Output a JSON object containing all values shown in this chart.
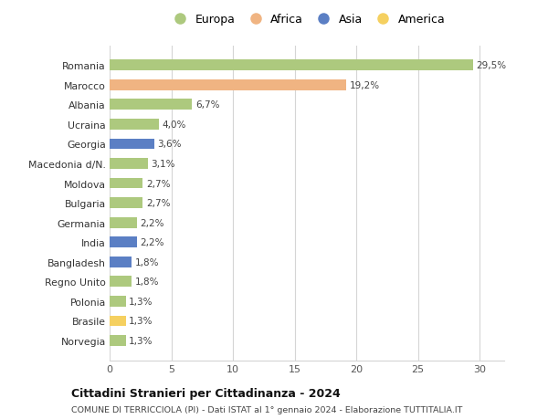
{
  "countries": [
    "Romania",
    "Marocco",
    "Albania",
    "Ucraina",
    "Georgia",
    "Macedonia d/N.",
    "Moldova",
    "Bulgaria",
    "Germania",
    "India",
    "Bangladesh",
    "Regno Unito",
    "Polonia",
    "Brasile",
    "Norvegia"
  ],
  "values": [
    29.5,
    19.2,
    6.7,
    4.0,
    3.6,
    3.1,
    2.7,
    2.7,
    2.2,
    2.2,
    1.8,
    1.8,
    1.3,
    1.3,
    1.3
  ],
  "labels": [
    "29,5%",
    "19,2%",
    "6,7%",
    "4,0%",
    "3,6%",
    "3,1%",
    "2,7%",
    "2,7%",
    "2,2%",
    "2,2%",
    "1,8%",
    "1,8%",
    "1,3%",
    "1,3%",
    "1,3%"
  ],
  "continents": [
    "Europa",
    "Africa",
    "Europa",
    "Europa",
    "Asia",
    "Europa",
    "Europa",
    "Europa",
    "Europa",
    "Asia",
    "Asia",
    "Europa",
    "Europa",
    "America",
    "Europa"
  ],
  "continent_colors": {
    "Europa": "#adc97e",
    "Africa": "#f0b482",
    "Asia": "#5b7fc4",
    "America": "#f5d060"
  },
  "legend_order": [
    "Europa",
    "Africa",
    "Asia",
    "America"
  ],
  "title": "Cittadini Stranieri per Cittadinanza - 2024",
  "subtitle": "COMUNE DI TERRICCIOLA (PI) - Dati ISTAT al 1° gennaio 2024 - Elaborazione TUTTITALIA.IT",
  "xlim": [
    0,
    32
  ],
  "xticks": [
    0,
    5,
    10,
    15,
    20,
    25,
    30
  ],
  "background_color": "#ffffff",
  "grid_color": "#d5d5d5",
  "bar_height": 0.55
}
